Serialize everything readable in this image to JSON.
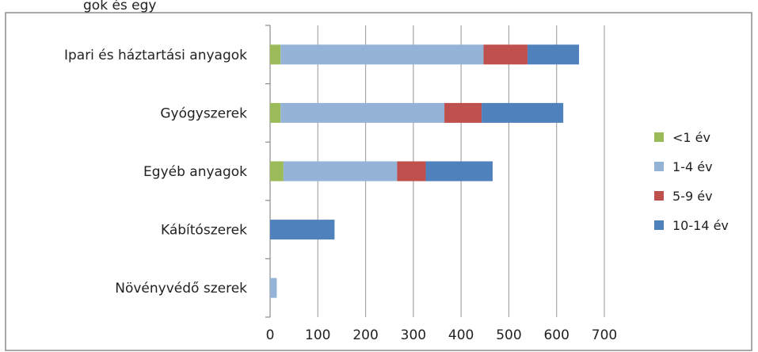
{
  "header_fragment": "gok és egy",
  "chart_data": {
    "type": "bar",
    "orientation": "horizontal",
    "stacked": true,
    "categories": [
      "Ipari és háztartási anyagok",
      "Gyógyszerek",
      "Egyéb anyagok",
      "Kábítószerek",
      "Növényvédő szerek"
    ],
    "series": [
      {
        "name": "<1 év",
        "color": "#9bbb59",
        "values": [
          22,
          22,
          28,
          0,
          0
        ]
      },
      {
        "name": "1-4 év",
        "color": "#95b3d7",
        "values": [
          425,
          343,
          238,
          0,
          14
        ]
      },
      {
        "name": "5-9 év",
        "color": "#c0504d",
        "values": [
          92,
          78,
          60,
          0,
          0
        ]
      },
      {
        "name": "10-14 év",
        "color": "#4f81bd",
        "values": [
          108,
          171,
          140,
          135,
          0
        ]
      }
    ],
    "xlim": [
      0,
      700
    ],
    "xticks": [
      "0",
      "100",
      "200",
      "300",
      "400",
      "500",
      "600",
      "700"
    ],
    "grid": true,
    "legend_position": "right"
  }
}
